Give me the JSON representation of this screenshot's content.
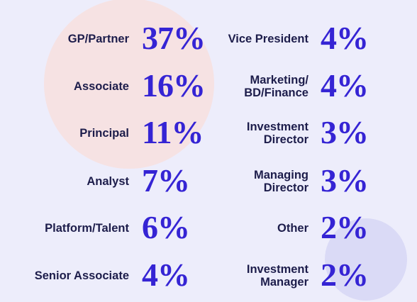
{
  "columns": [
    {
      "items": [
        {
          "label": [
            "GP/Partner"
          ],
          "value": "37%"
        },
        {
          "label": [
            "Associate"
          ],
          "value": "16%"
        },
        {
          "label": [
            "Principal"
          ],
          "value": "11%"
        },
        {
          "label": [
            "Analyst"
          ],
          "value": "7%"
        },
        {
          "label": [
            "Platform/Talent"
          ],
          "value": "6%"
        },
        {
          "label": [
            "Senior Associate"
          ],
          "value": "4%"
        }
      ]
    },
    {
      "items": [
        {
          "label": [
            "Vice President"
          ],
          "value": "4%"
        },
        {
          "label": [
            "Marketing/",
            "BD/Finance"
          ],
          "value": "4%"
        },
        {
          "label": [
            "Investment",
            "Director"
          ],
          "value": "3%"
        },
        {
          "label": [
            "Managing",
            "Director"
          ],
          "value": "3%"
        },
        {
          "label": [
            "Other"
          ],
          "value": "2%"
        },
        {
          "label": [
            "Investment",
            "Manager"
          ],
          "value": "2%"
        }
      ]
    }
  ]
}
